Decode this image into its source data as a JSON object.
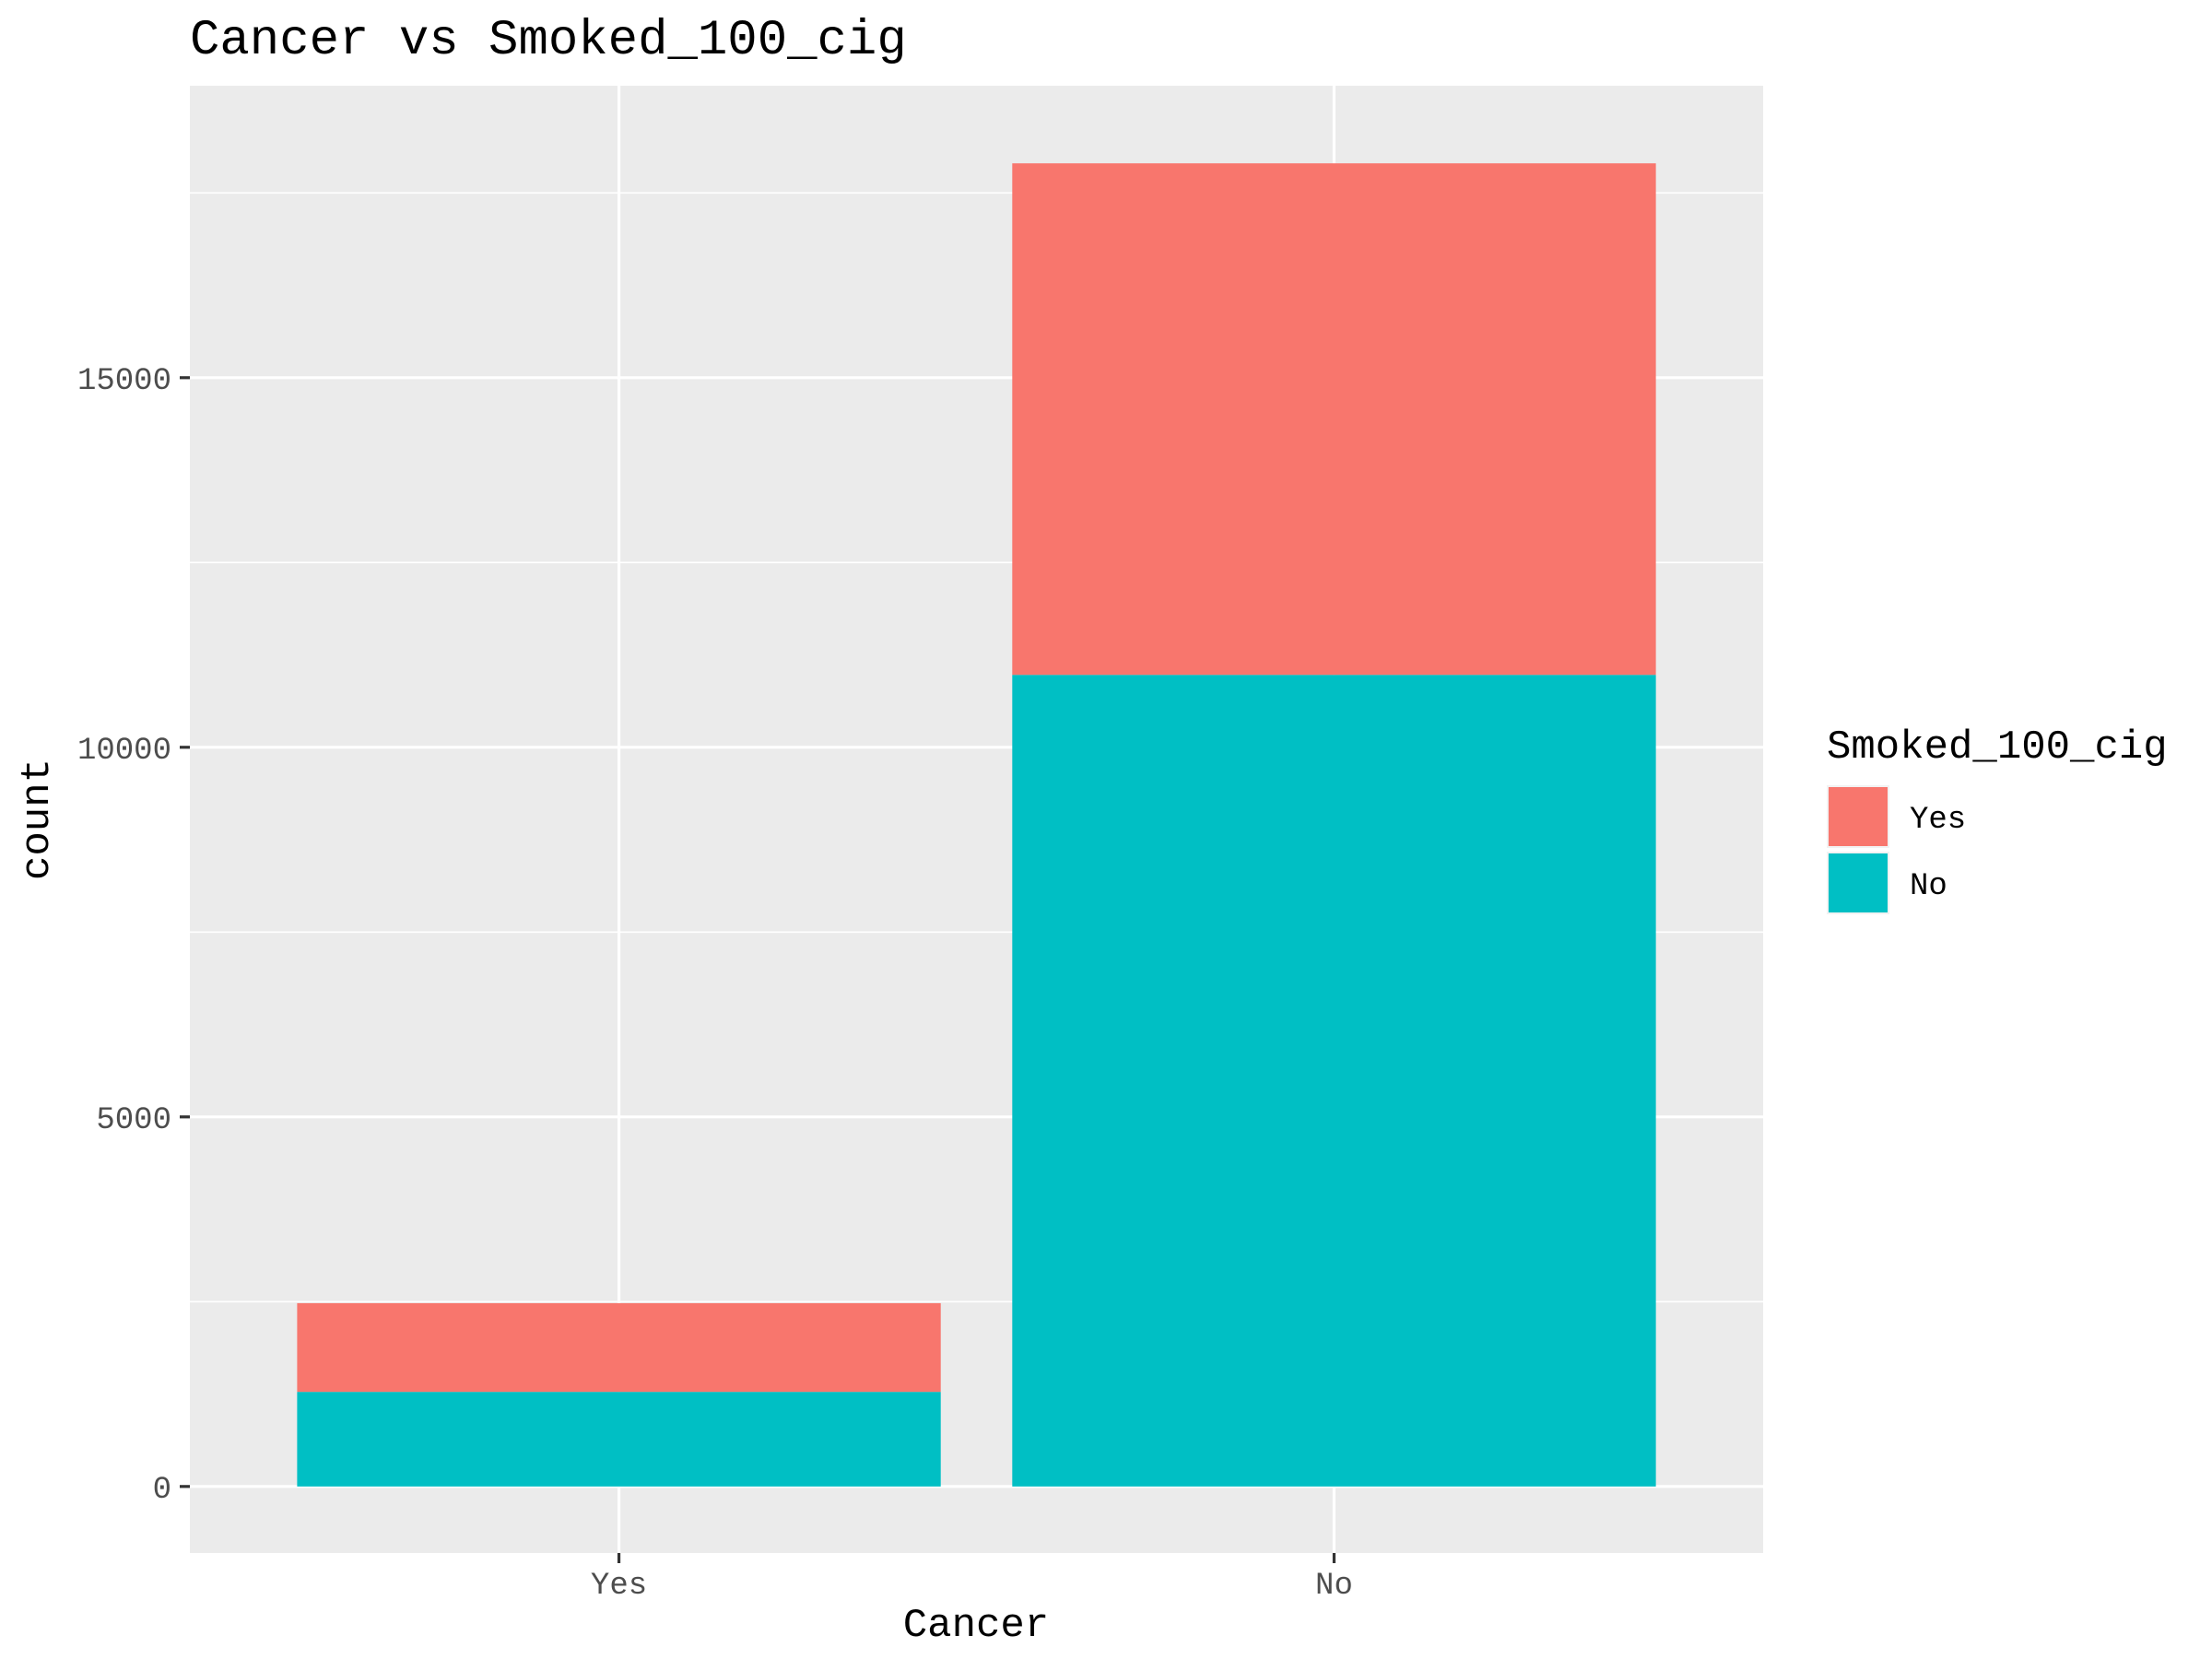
{
  "chart_data": {
    "type": "bar",
    "stacked": true,
    "title": "Cancer vs Smoked_100_cig",
    "xlabel": "Cancer",
    "ylabel": "count",
    "categories": [
      "Yes",
      "No"
    ],
    "series": [
      {
        "name": "No",
        "values": [
          1280,
          10980
        ],
        "color": "#00BFC4"
      },
      {
        "name": "Yes",
        "values": [
          1200,
          6920
        ],
        "color": "#F8766D"
      }
    ],
    "ylim": [
      -900,
      18950
    ],
    "yticks": [
      0,
      5000,
      10000,
      15000
    ],
    "yticks_labels": [
      "0",
      "5000",
      "10000",
      "15000"
    ],
    "grid": true,
    "panel_background": "#EBEBEB",
    "grid_color": "#FFFFFF",
    "legend": {
      "title": "Smoked_100_cig",
      "position": "right",
      "entries": [
        {
          "label": "Yes",
          "color": "#F8766D"
        },
        {
          "label": "No",
          "color": "#00BFC4"
        }
      ]
    }
  }
}
